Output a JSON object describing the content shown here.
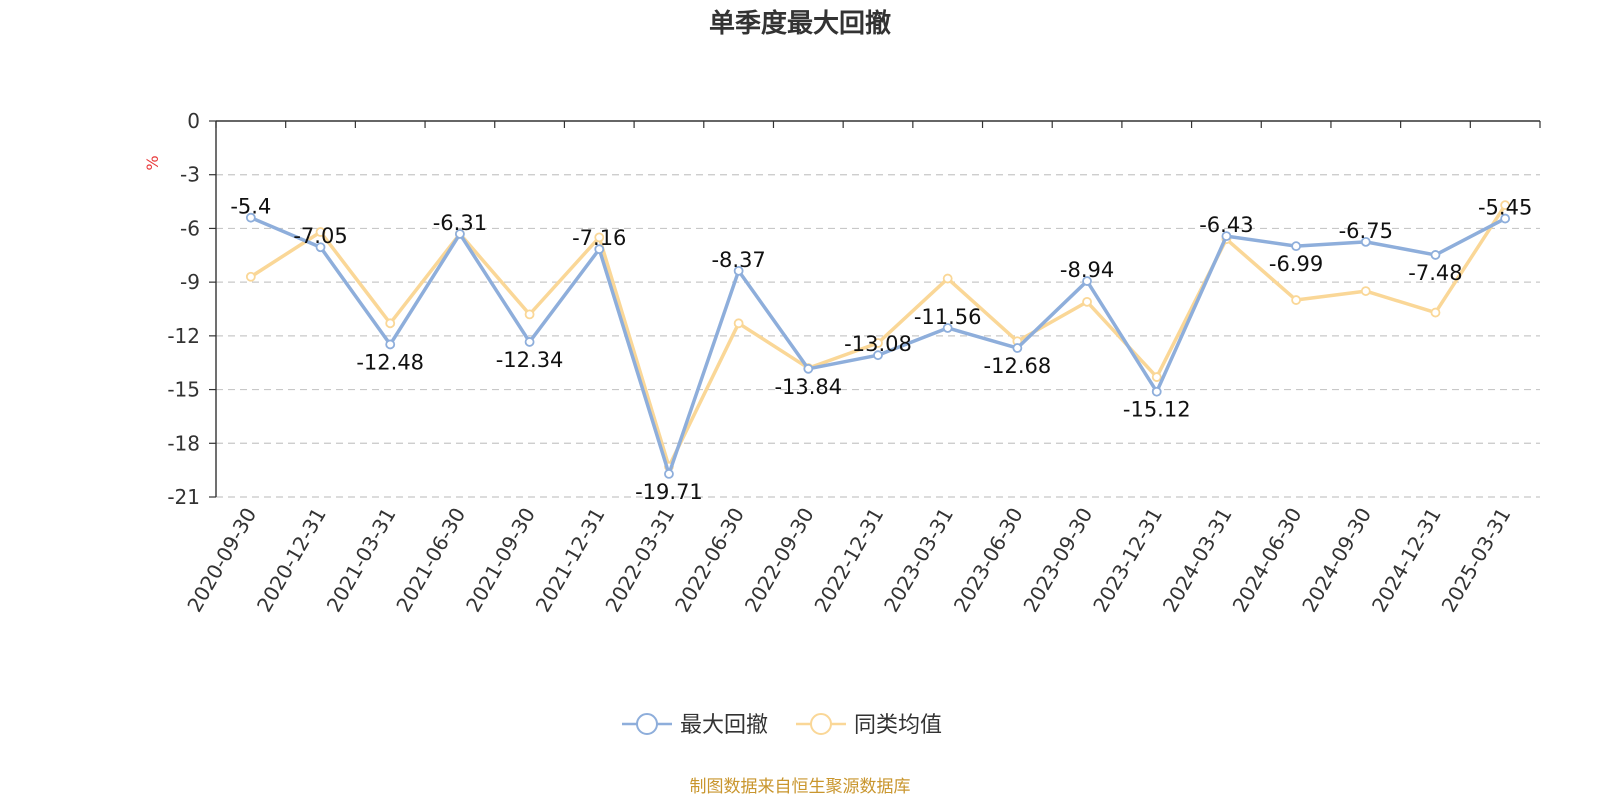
{
  "chart_data": {
    "type": "line",
    "title": "单季度最大回撤",
    "ylabel": "%",
    "ylim": [
      -21,
      0
    ],
    "yticks": [
      0,
      -3,
      -6,
      -9,
      -12,
      -15,
      -18,
      -21
    ],
    "grid": true,
    "legend_position": "bottom",
    "categories": [
      "2020-09-30",
      "2020-12-31",
      "2021-03-31",
      "2021-06-30",
      "2021-09-30",
      "2021-12-31",
      "2022-03-31",
      "2022-06-30",
      "2022-09-30",
      "2022-12-31",
      "2023-03-31",
      "2023-06-30",
      "2023-09-30",
      "2023-12-31",
      "2024-03-31",
      "2024-06-30",
      "2024-09-30",
      "2024-12-31",
      "2025-03-31"
    ],
    "series": [
      {
        "name": "最大回撤",
        "color": "#8eaedb",
        "show_labels": true,
        "values": [
          -5.4,
          -7.05,
          -12.48,
          -6.31,
          -12.34,
          -7.16,
          -19.71,
          -8.37,
          -13.84,
          -13.08,
          -11.56,
          -12.68,
          -8.94,
          -15.12,
          -6.43,
          -6.99,
          -6.75,
          -7.48,
          -5.45
        ],
        "labels": [
          "-5.4",
          "-7.05",
          "-12.48",
          "-6.31",
          "-12.34",
          "-7.16",
          "-19.71",
          "-8.37",
          "-13.84",
          "-13.08",
          "-11.56",
          "-12.68",
          "-8.94",
          "-15.12",
          "-6.43",
          "-6.99",
          "-6.75",
          "-7.48",
          "-5.45"
        ]
      },
      {
        "name": "同类均值",
        "color": "#fad797",
        "show_labels": false,
        "values": [
          -8.7,
          -6.2,
          -11.3,
          -6.3,
          -10.8,
          -6.5,
          -19.3,
          -11.3,
          -13.8,
          -12.4,
          -8.8,
          -12.3,
          -10.1,
          -14.3,
          -6.6,
          -10.0,
          -9.5,
          -10.7,
          -4.7
        ]
      }
    ]
  },
  "source_text": "制图数据来自恒生聚源数据库"
}
